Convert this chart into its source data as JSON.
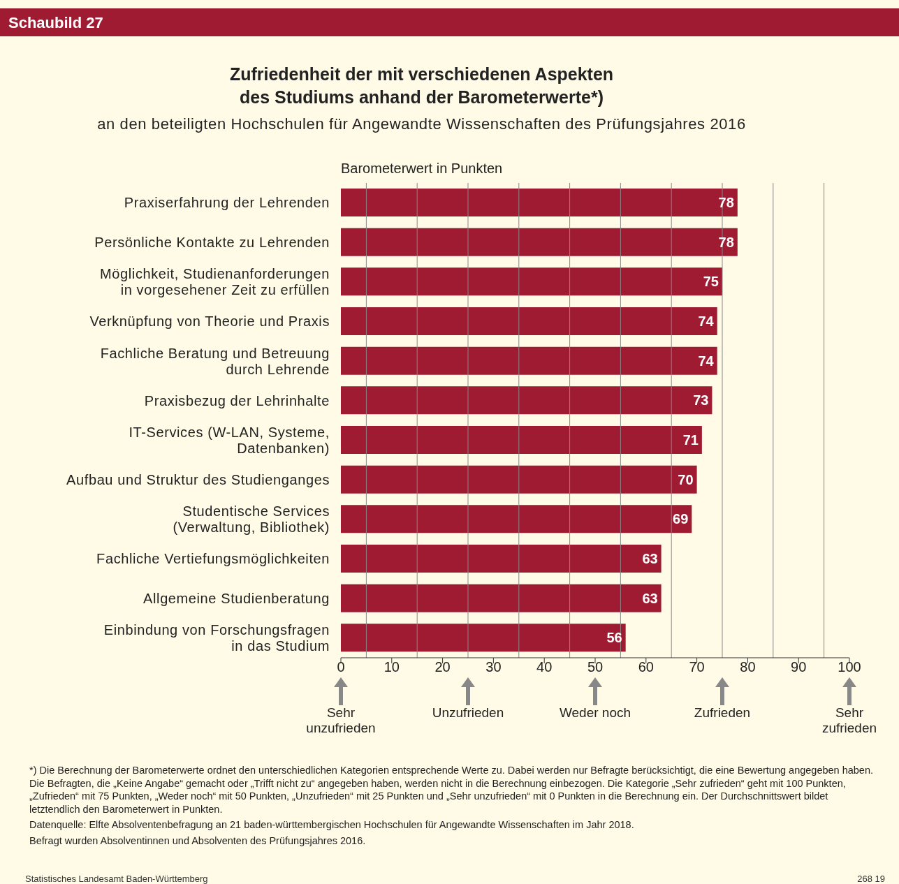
{
  "chart_data": {
    "type": "bar",
    "orientation": "horizontal",
    "title": "Zufriedenheit der mit verschiedenen Aspekten\ndes Studiums anhand der Barometerwerte*)",
    "subtitle": "an den beteiligten Hochschulen für Angewandte Wissenschaften des Prüfungsjahres 2016",
    "xlabel": "Barometerwert in Punkten",
    "categories": [
      "Praxiserfahrung der Lehrenden",
      "Persönliche Kontakte zu Lehrenden",
      "Möglichkeit, Studienanforderungen\nin vorgesehener Zeit zu erfüllen",
      "Verknüpfung von Theorie und Praxis",
      "Fachliche Beratung und Betreuung\ndurch Lehrende",
      "Praxisbezug der Lehrinhalte",
      "IT-Services (W-LAN, Systeme,\nDatenbanken)",
      "Aufbau und Struktur des Studienganges",
      "Studentische Services\n(Verwaltung, Bibliothek)",
      "Fachliche Vertiefungsmöglichkeiten",
      "Allgemeine Studienberatung",
      "Einbindung von Forschungsfragen\nin das Studium"
    ],
    "values": [
      78,
      78,
      75,
      74,
      74,
      73,
      71,
      70,
      69,
      63,
      63,
      56
    ],
    "color": "#9e1b32",
    "data_labels": true,
    "xlim": [
      0,
      100
    ],
    "xticks": [
      0,
      {
        "value": 5,
        "label": null
      },
      10,
      {
        "value": 15,
        "label": null
      },
      20,
      {
        "value": 25,
        "label": null
      },
      30,
      {
        "value": 35,
        "label": null
      },
      40,
      {
        "value": 45,
        "label": null
      },
      50,
      {
        "value": 55,
        "label": null
      },
      60,
      {
        "value": 65,
        "label": null
      },
      70,
      {
        "value": 75,
        "label": null
      },
      80,
      {
        "value": 85,
        "label": null
      },
      90,
      {
        "value": 95,
        "label": null
      },
      100
    ],
    "grid": "x",
    "legend": false,
    "annotations": [
      "Schaubild 27",
      "Sehr\nunzufrieden",
      "Unzufrieden",
      "Weder noch",
      "Zufrieden",
      "Sehr\nzufrieden",
      "*) Die Berechnung der Barometerwerte ordnet den unterschiedlichen Kategorien entsprechende Werte zu. Dabei werden nur Befragte berücksichtigt, die eine Bewertung angegeben haben. Die Befragten, die „Keine Angabe“ gemacht oder „Trifft nicht zu“ angegeben haben, werden nicht in die Berechnung einbezogen. Die Kategorie „Sehr zufrieden“ geht mit 100 Punkten, „Zufrieden“ mit 75 Punkten, „Weder noch“ mit 50 Punkten, „Unzufrieden“ mit 25 Punkten und „Sehr unzufrieden“ mit 0 Punkten in die Berechnung ein. Der Durchschnittswert bildet letztendlich den Barometerwert in Punkten.",
      "Datenquelle: Elfte Absolventenbefragung an 21 baden-württembergischen Hochschulen für Angewandte Wissenschaften im Jahr 2018.",
      "Befragt wurden Absolventinnen und Absolventen des Prüfungsjahres 2016.",
      "Statistisches Landesamt Baden-Württemberg",
      "268 19"
    ]
  }
}
